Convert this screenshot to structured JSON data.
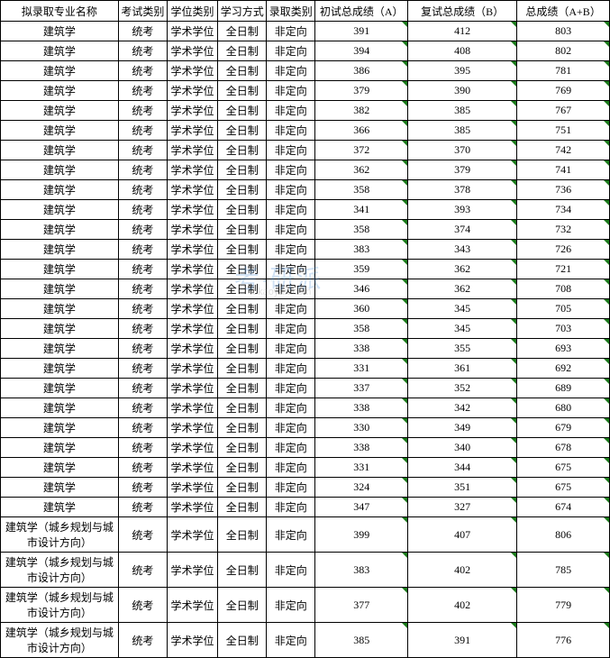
{
  "watermark": {
    "main": "考·研派",
    "sub": "okaoyan.com"
  },
  "table": {
    "columns": [
      "拟录取专业名称",
      "考试类别",
      "学位类别",
      "学习方式",
      "录取类别",
      "初试总成绩（A）",
      "复试总成绩（B）",
      "总成绩（A+B）"
    ],
    "column_classes": [
      "col-major",
      "col-exam",
      "col-degree",
      "col-mode",
      "col-admit",
      "col-prelim",
      "col-retest",
      "col-total"
    ],
    "corner_marker_cols": [
      5,
      6,
      7
    ],
    "rows": [
      {
        "cells": [
          "建筑学",
          "统考",
          "学术学位",
          "全日制",
          "非定向",
          "391",
          "412",
          "803"
        ],
        "tall": false
      },
      {
        "cells": [
          "建筑学",
          "统考",
          "学术学位",
          "全日制",
          "非定向",
          "394",
          "408",
          "802"
        ],
        "tall": false
      },
      {
        "cells": [
          "建筑学",
          "统考",
          "学术学位",
          "全日制",
          "非定向",
          "386",
          "395",
          "781"
        ],
        "tall": false
      },
      {
        "cells": [
          "建筑学",
          "统考",
          "学术学位",
          "全日制",
          "非定向",
          "379",
          "390",
          "769"
        ],
        "tall": false
      },
      {
        "cells": [
          "建筑学",
          "统考",
          "学术学位",
          "全日制",
          "非定向",
          "382",
          "385",
          "767"
        ],
        "tall": false
      },
      {
        "cells": [
          "建筑学",
          "统考",
          "学术学位",
          "全日制",
          "非定向",
          "366",
          "385",
          "751"
        ],
        "tall": false
      },
      {
        "cells": [
          "建筑学",
          "统考",
          "学术学位",
          "全日制",
          "非定向",
          "372",
          "370",
          "742"
        ],
        "tall": false
      },
      {
        "cells": [
          "建筑学",
          "统考",
          "学术学位",
          "全日制",
          "非定向",
          "362",
          "379",
          "741"
        ],
        "tall": false
      },
      {
        "cells": [
          "建筑学",
          "统考",
          "学术学位",
          "全日制",
          "非定向",
          "358",
          "378",
          "736"
        ],
        "tall": false
      },
      {
        "cells": [
          "建筑学",
          "统考",
          "学术学位",
          "全日制",
          "非定向",
          "341",
          "393",
          "734"
        ],
        "tall": false
      },
      {
        "cells": [
          "建筑学",
          "统考",
          "学术学位",
          "全日制",
          "非定向",
          "358",
          "374",
          "732"
        ],
        "tall": false
      },
      {
        "cells": [
          "建筑学",
          "统考",
          "学术学位",
          "全日制",
          "非定向",
          "383",
          "343",
          "726"
        ],
        "tall": false
      },
      {
        "cells": [
          "建筑学",
          "统考",
          "学术学位",
          "全日制",
          "非定向",
          "359",
          "362",
          "721"
        ],
        "tall": false
      },
      {
        "cells": [
          "建筑学",
          "统考",
          "学术学位",
          "全日制",
          "非定向",
          "346",
          "362",
          "708"
        ],
        "tall": false
      },
      {
        "cells": [
          "建筑学",
          "统考",
          "学术学位",
          "全日制",
          "非定向",
          "360",
          "345",
          "705"
        ],
        "tall": false
      },
      {
        "cells": [
          "建筑学",
          "统考",
          "学术学位",
          "全日制",
          "非定向",
          "358",
          "345",
          "703"
        ],
        "tall": false
      },
      {
        "cells": [
          "建筑学",
          "统考",
          "学术学位",
          "全日制",
          "非定向",
          "338",
          "355",
          "693"
        ],
        "tall": false
      },
      {
        "cells": [
          "建筑学",
          "统考",
          "学术学位",
          "全日制",
          "非定向",
          "331",
          "361",
          "692"
        ],
        "tall": false
      },
      {
        "cells": [
          "建筑学",
          "统考",
          "学术学位",
          "全日制",
          "非定向",
          "337",
          "352",
          "689"
        ],
        "tall": false
      },
      {
        "cells": [
          "建筑学",
          "统考",
          "学术学位",
          "全日制",
          "非定向",
          "338",
          "342",
          "680"
        ],
        "tall": false
      },
      {
        "cells": [
          "建筑学",
          "统考",
          "学术学位",
          "全日制",
          "非定向",
          "330",
          "349",
          "679"
        ],
        "tall": false
      },
      {
        "cells": [
          "建筑学",
          "统考",
          "学术学位",
          "全日制",
          "非定向",
          "338",
          "340",
          "678"
        ],
        "tall": false
      },
      {
        "cells": [
          "建筑学",
          "统考",
          "学术学位",
          "全日制",
          "非定向",
          "331",
          "344",
          "675"
        ],
        "tall": false
      },
      {
        "cells": [
          "建筑学",
          "统考",
          "学术学位",
          "全日制",
          "非定向",
          "324",
          "351",
          "675"
        ],
        "tall": false
      },
      {
        "cells": [
          "建筑学",
          "统考",
          "学术学位",
          "全日制",
          "非定向",
          "347",
          "327",
          "674"
        ],
        "tall": false
      },
      {
        "cells": [
          "建筑学（城乡规划与城市设计方向）",
          "统考",
          "学术学位",
          "全日制",
          "非定向",
          "399",
          "407",
          "806"
        ],
        "tall": true
      },
      {
        "cells": [
          "建筑学（城乡规划与城市设计方向）",
          "统考",
          "学术学位",
          "全日制",
          "非定向",
          "383",
          "402",
          "785"
        ],
        "tall": true
      },
      {
        "cells": [
          "建筑学（城乡规划与城市设计方向）",
          "统考",
          "学术学位",
          "全日制",
          "非定向",
          "377",
          "402",
          "779"
        ],
        "tall": true
      },
      {
        "cells": [
          "建筑学（城乡规划与城市设计方向）",
          "统考",
          "学术学位",
          "全日制",
          "非定向",
          "385",
          "391",
          "776"
        ],
        "tall": true
      }
    ]
  },
  "style": {
    "border_color": "#000000",
    "background_color": "#ffffff",
    "text_color": "#000000",
    "marker_color": "#1a7a1a",
    "font_size": 12,
    "font_family": "SimSun"
  }
}
